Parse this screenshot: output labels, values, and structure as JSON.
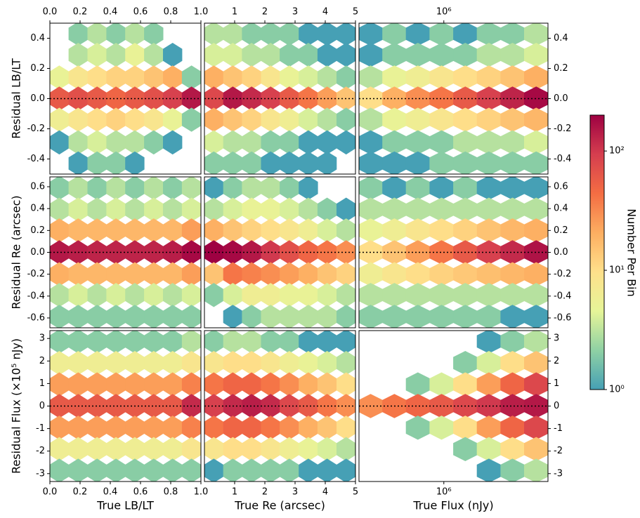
{
  "chart_data": {
    "type": "hexbin",
    "hline": 0,
    "columns": [
      {
        "xlabel": "True LB/LT",
        "xlim": [
          0,
          1
        ],
        "xscale": "linear",
        "xticks": [
          {
            "value": 0,
            "label": "0.0"
          },
          0.2,
          0.4,
          0.6,
          0.8,
          {
            "value": 1,
            "label": "1.0"
          }
        ],
        "x_bins": [
          0.0625,
          0.1875,
          0.3125,
          0.4375,
          0.5625,
          0.6875,
          0.8125,
          0.9375
        ]
      },
      {
        "xlabel": "True Re (arcsec)",
        "xlim": [
          0,
          5
        ],
        "xscale": "linear",
        "xticks": [
          1,
          2,
          3,
          4,
          5
        ],
        "x_bins": [
          0.31,
          0.94,
          1.56,
          2.19,
          2.81,
          3.44,
          4.06,
          4.69
        ]
      },
      {
        "xlabel": "True Flux (nJy)",
        "xlim": [
          420000,
          2900000
        ],
        "xscale": "log",
        "xticks": [
          {
            "value": 1000000,
            "label": "10⁶"
          }
        ],
        "x_bins": [
          473000,
          603000,
          767000,
          977000,
          1245000,
          1585000,
          2018000,
          2570000
        ]
      }
    ],
    "rows": [
      {
        "ylabel": "Residual LB/LT",
        "ylim": [
          -0.5,
          0.5
        ],
        "yticks": [
          -0.4,
          -0.2,
          {
            "value": 0,
            "label": "0.0"
          },
          0.2,
          0.4
        ],
        "y_bins": [
          0.43,
          0.29,
          0.14,
          0,
          -0.14,
          -0.29,
          -0.43
        ]
      },
      {
        "ylabel": "Residual Re (arcsec)",
        "ylim": [
          -0.69,
          0.69
        ],
        "yticks": [
          -0.6,
          -0.4,
          -0.2,
          {
            "value": 0,
            "label": "0.0"
          },
          0.2,
          0.4,
          0.6
        ],
        "y_bins": [
          0.59,
          0.39,
          0.2,
          0,
          -0.2,
          -0.39,
          -0.59
        ]
      },
      {
        "ylabel": "Residual Flux (×10⁵ nJy)",
        "ylim": [
          -3.35,
          3.35
        ],
        "yticks": [
          -3,
          -2,
          -1,
          0,
          1,
          2,
          3
        ],
        "y_bins": [
          2.87,
          1.91,
          0.96,
          0,
          -0.96,
          -1.91,
          -2.87
        ]
      }
    ],
    "counts": [
      [
        [
          [
            0,
            2,
            3,
            2,
            3,
            2,
            0,
            0
          ],
          [
            0,
            3,
            4,
            3,
            5,
            3,
            1,
            0
          ],
          [
            5,
            8,
            10,
            12,
            12,
            15,
            20,
            2
          ],
          [
            60,
            70,
            60,
            50,
            60,
            70,
            90,
            150
          ],
          [
            6,
            8,
            10,
            12,
            10,
            8,
            5,
            2
          ],
          [
            1,
            3,
            4,
            3,
            3,
            2,
            1,
            0
          ],
          [
            0,
            1,
            2,
            2,
            1,
            0,
            0,
            0
          ]
        ],
        [
          [
            3,
            3,
            2,
            2,
            2,
            1,
            1,
            1
          ],
          [
            4,
            4,
            3,
            3,
            2,
            2,
            1,
            1
          ],
          [
            20,
            15,
            12,
            8,
            5,
            4,
            3,
            2
          ],
          [
            80,
            150,
            120,
            90,
            60,
            40,
            25,
            15
          ],
          [
            20,
            15,
            12,
            8,
            6,
            4,
            3,
            2
          ],
          [
            4,
            3,
            3,
            2,
            2,
            1,
            1,
            1
          ],
          [
            2,
            2,
            2,
            1,
            1,
            1,
            1,
            0
          ]
        ],
        [
          [
            1,
            2,
            1,
            2,
            1,
            2,
            2,
            3
          ],
          [
            1,
            2,
            2,
            2,
            2,
            3,
            3,
            4
          ],
          [
            3,
            5,
            6,
            8,
            10,
            12,
            15,
            20
          ],
          [
            10,
            20,
            30,
            40,
            60,
            90,
            130,
            180
          ],
          [
            3,
            5,
            6,
            8,
            10,
            12,
            15,
            18
          ],
          [
            1,
            2,
            2,
            2,
            3,
            3,
            3,
            4
          ],
          [
            1,
            1,
            1,
            2,
            2,
            2,
            2,
            2
          ]
        ]
      ],
      [
        [
          [
            2,
            3,
            2,
            3,
            2,
            3,
            2,
            3
          ],
          [
            3,
            4,
            3,
            4,
            3,
            4,
            3,
            4
          ],
          [
            20,
            18,
            18,
            18,
            18,
            18,
            18,
            25
          ],
          [
            150,
            140,
            130,
            130,
            130,
            130,
            140,
            180
          ],
          [
            20,
            18,
            18,
            18,
            18,
            18,
            18,
            25
          ],
          [
            3,
            4,
            3,
            4,
            3,
            4,
            3,
            4
          ],
          [
            2,
            2,
            2,
            2,
            2,
            2,
            2,
            2
          ]
        ],
        [
          [
            1,
            2,
            3,
            3,
            2,
            1,
            0,
            0
          ],
          [
            3,
            4,
            5,
            5,
            4,
            3,
            2,
            1
          ],
          [
            20,
            15,
            12,
            10,
            8,
            6,
            4,
            3
          ],
          [
            200,
            180,
            150,
            100,
            70,
            50,
            40,
            30
          ],
          [
            15,
            40,
            35,
            30,
            25,
            20,
            15,
            12
          ],
          [
            2,
            4,
            6,
            6,
            5,
            5,
            4,
            3
          ],
          [
            0,
            1,
            2,
            3,
            3,
            3,
            3,
            2
          ]
        ],
        [
          [
            2,
            1,
            2,
            1,
            2,
            1,
            1,
            1
          ],
          [
            3,
            3,
            3,
            3,
            3,
            3,
            3,
            3
          ],
          [
            5,
            6,
            8,
            10,
            12,
            15,
            18,
            20
          ],
          [
            10,
            15,
            25,
            40,
            60,
            90,
            120,
            160
          ],
          [
            6,
            8,
            10,
            12,
            14,
            16,
            18,
            20
          ],
          [
            3,
            3,
            3,
            3,
            3,
            3,
            3,
            3
          ],
          [
            2,
            2,
            2,
            2,
            2,
            2,
            1,
            1
          ]
        ]
      ],
      [
        [
          [
            2,
            2,
            2,
            2,
            2,
            2,
            2,
            3
          ],
          [
            6,
            6,
            6,
            6,
            6,
            6,
            6,
            8
          ],
          [
            25,
            25,
            25,
            25,
            25,
            25,
            25,
            35
          ],
          [
            60,
            60,
            60,
            60,
            60,
            60,
            60,
            120
          ],
          [
            25,
            25,
            25,
            25,
            25,
            25,
            25,
            35
          ],
          [
            6,
            6,
            6,
            6,
            6,
            6,
            6,
            8
          ],
          [
            2,
            2,
            2,
            2,
            2,
            2,
            2,
            2
          ]
        ],
        [
          [
            2,
            3,
            3,
            2,
            2,
            1,
            1,
            1
          ],
          [
            8,
            10,
            10,
            8,
            6,
            5,
            4,
            3
          ],
          [
            40,
            50,
            50,
            40,
            30,
            20,
            15,
            10
          ],
          [
            90,
            120,
            140,
            120,
            80,
            60,
            40,
            30
          ],
          [
            40,
            50,
            50,
            40,
            30,
            20,
            15,
            10
          ],
          [
            8,
            10,
            10,
            8,
            6,
            5,
            4,
            3
          ],
          [
            1,
            2,
            2,
            2,
            2,
            1,
            1,
            1
          ]
        ],
        [
          [
            0,
            0,
            0,
            0,
            0,
            1,
            2,
            3
          ],
          [
            0,
            0,
            0,
            0,
            2,
            4,
            10,
            15
          ],
          [
            0,
            0,
            2,
            4,
            10,
            25,
            50,
            80
          ],
          [
            30,
            40,
            50,
            60,
            80,
            100,
            140,
            150
          ],
          [
            0,
            0,
            2,
            4,
            10,
            25,
            50,
            80
          ],
          [
            0,
            0,
            0,
            0,
            2,
            4,
            10,
            15
          ],
          [
            0,
            0,
            0,
            0,
            0,
            1,
            2,
            3
          ]
        ]
      ]
    ],
    "colorbar": {
      "label": "Number Per Bin",
      "scale": "log",
      "lim": [
        1,
        200
      ],
      "ticks": [
        {
          "value": 1,
          "label": "10⁰"
        },
        {
          "value": 10,
          "label": "10¹"
        },
        {
          "value": 100,
          "label": "10²"
        }
      ],
      "colormap": [
        "#46a0b5",
        "#8fd1a4",
        "#e6f598",
        "#fee08b",
        "#fdae61",
        "#f46d43",
        "#d53e4f",
        "#9e0142"
      ]
    }
  }
}
